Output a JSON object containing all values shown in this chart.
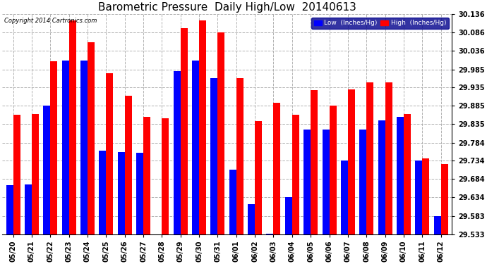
{
  "title": "Barometric Pressure  Daily High/Low  20140613",
  "copyright": "Copyright 2014 Cartronics.com",
  "legend_low": "Low  (Inches/Hg)",
  "legend_high": "High  (Inches/Hg)",
  "color_low": "#0000FF",
  "color_high": "#FF0000",
  "background_color": "#FFFFFF",
  "ylim": [
    29.533,
    30.136
  ],
  "yticks": [
    29.533,
    29.583,
    29.634,
    29.684,
    29.734,
    29.784,
    29.835,
    29.885,
    29.935,
    29.985,
    30.036,
    30.086,
    30.136
  ],
  "dates": [
    "05/20",
    "05/21",
    "05/22",
    "05/23",
    "05/24",
    "05/25",
    "05/26",
    "05/27",
    "05/28",
    "05/29",
    "05/30",
    "05/31",
    "06/01",
    "06/02",
    "06/03",
    "06/04",
    "06/05",
    "06/06",
    "06/07",
    "06/08",
    "06/09",
    "06/10",
    "06/11",
    "06/12"
  ],
  "high_values": [
    29.86,
    29.862,
    30.008,
    30.12,
    30.06,
    29.975,
    29.912,
    29.855,
    29.85,
    30.098,
    30.12,
    30.086,
    29.96,
    29.843,
    29.893,
    29.86,
    29.928,
    29.885,
    29.93,
    29.95,
    29.95,
    29.862,
    29.74,
    29.725
  ],
  "low_values": [
    29.668,
    29.669,
    29.885,
    30.01,
    30.01,
    29.762,
    29.758,
    29.757,
    29.533,
    29.98,
    30.01,
    29.96,
    29.71,
    29.616,
    29.534,
    29.634,
    29.82,
    29.82,
    29.735,
    29.82,
    29.845,
    29.855,
    29.734,
    29.583
  ],
  "grid_color": "#AAAAAA",
  "title_fontsize": 11,
  "tick_fontsize": 7,
  "bar_width": 0.38
}
